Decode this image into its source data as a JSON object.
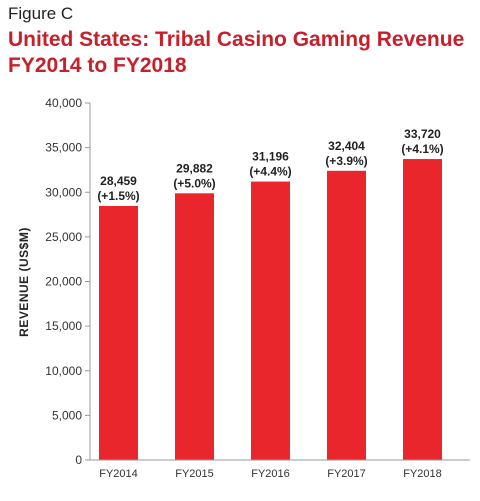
{
  "figure_label": "Figure C",
  "title_lines": [
    "United States: Tribal Casino Gaming Revenue",
    "FY2014 to FY2018"
  ],
  "chart_data": {
    "type": "bar",
    "title": "United States: Tribal Casino Gaming Revenue FY2014 to FY2018",
    "ylabel": "REVENUE (US$M)",
    "xlabel": "",
    "categories": [
      "FY2014",
      "FY2015",
      "FY2016",
      "FY2017",
      "FY2018"
    ],
    "values": [
      28459,
      29882,
      31196,
      32404,
      33720
    ],
    "value_labels": [
      "28,459",
      "29,882",
      "31,196",
      "32,404",
      "33,720"
    ],
    "change_labels": [
      "(+1.5%)",
      "(+5.0%)",
      "(+4.4%)",
      "(+3.9%)",
      "(+4.1%)"
    ],
    "ylim": [
      0,
      40000
    ],
    "yticks": [
      0,
      5000,
      10000,
      15000,
      20000,
      25000,
      30000,
      35000,
      40000
    ],
    "ytick_labels": [
      "0",
      "5,000",
      "10,000",
      "15,000",
      "20,000",
      "25,000",
      "30,000",
      "35,000",
      "40,000"
    ],
    "grid": false,
    "bar_color": "#e8262c"
  }
}
